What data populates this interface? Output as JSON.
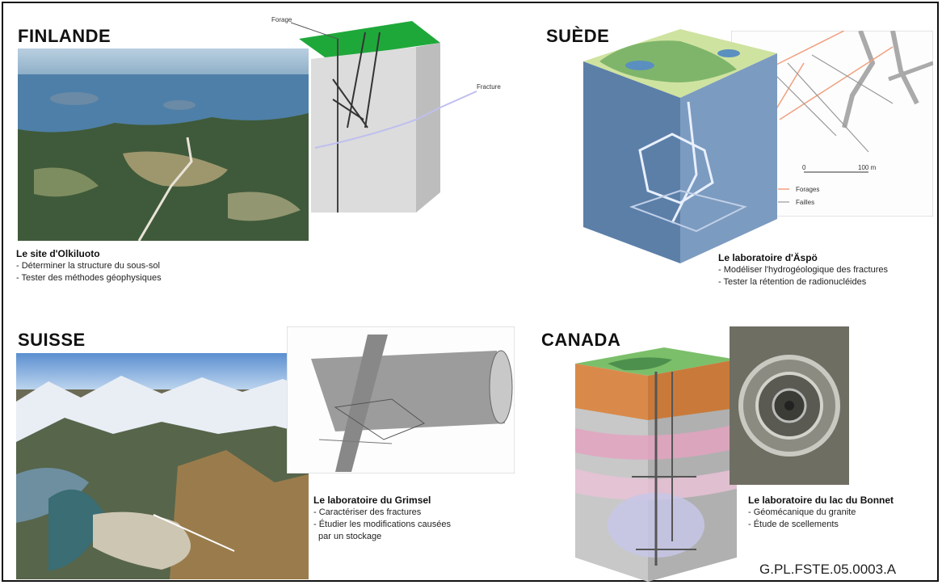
{
  "countries": {
    "finland": "FINLANDE",
    "sweden": "SUÈDE",
    "switzerland": "SUISSE",
    "canada": "CANADA"
  },
  "finland": {
    "caption_title": "Le site d'Olkiluoto",
    "lines": [
      "- Déterminer la structure du sous-sol",
      "- Tester des méthodes géophysiques"
    ],
    "diagram_labels": {
      "borehole": "Forage",
      "fracture": "Fracture"
    }
  },
  "sweden": {
    "caption_title": "Le laboratoire d'Äspö",
    "lines": [
      "- Modéliser l'hydrogéologique des fractures",
      "- Tester la rétention de radionucléides"
    ],
    "map_labels": {
      "scale_zero": "0",
      "scale_end": "100 m",
      "legend_boreholes": "Forages",
      "legend_faults": "Failles"
    }
  },
  "switzerland": {
    "caption_title": "Le laboratoire du Grimsel",
    "lines": [
      "- Caractériser des fractures",
      "- Étudier les modifications causées",
      "  par un stockage"
    ]
  },
  "canada": {
    "caption_title": "Le laboratoire du lac du Bonnet",
    "lines": [
      "- Géomécanique du granite",
      "- Étude de scellements"
    ]
  },
  "reference": "G.PL.FSTE.05.0003.A",
  "colors": {
    "grass": "#1fa83a",
    "block": "#d6d6d6",
    "lake": "#4e7fa8",
    "forest": "#3f5a3a",
    "fault_orange": "#f0a080"
  }
}
